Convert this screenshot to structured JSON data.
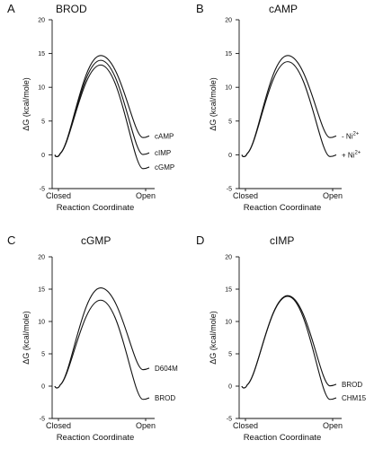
{
  "chart_data": [
    {
      "type": "line",
      "panel_letter": "A",
      "title": "BROD",
      "xlabel": "Reaction Coordinate",
      "ylabel": "ΔG (kcal/mole)",
      "x_ticks": [
        "Closed",
        "Open"
      ],
      "ylim": [
        -5,
        20
      ],
      "y_ticks": [
        "-5",
        "0",
        "5",
        "10",
        "15",
        "20"
      ],
      "grid": false,
      "series": [
        {
          "name": "cAMP",
          "barrier": 14.7,
          "final": 2.8
        },
        {
          "name": "cIMP",
          "barrier": 14.0,
          "final": 0.3
        },
        {
          "name": "cGMP",
          "barrier": 13.3,
          "final": -1.8
        }
      ]
    },
    {
      "type": "line",
      "panel_letter": "B",
      "title": "cAMP",
      "xlabel": "Reaction Coordinate",
      "ylabel": "ΔG (kcal/mole)",
      "x_ticks": [
        "Closed",
        "Open"
      ],
      "ylim": [
        -5,
        20
      ],
      "y_ticks": [
        "-5",
        "0",
        "5",
        "10",
        "15",
        "20"
      ],
      "grid": false,
      "series": [
        {
          "name": "- Ni",
          "superscript": "2+",
          "barrier": 14.7,
          "final": 2.8
        },
        {
          "name": "+ Ni",
          "superscript": "2+",
          "barrier": 13.8,
          "final": 0.0
        }
      ]
    },
    {
      "type": "line",
      "panel_letter": "C",
      "title": "cGMP",
      "xlabel": "Reaction Coordinate",
      "ylabel": "ΔG (kcal/mole)",
      "x_ticks": [
        "Closed",
        "Open"
      ],
      "ylim": [
        -5,
        20
      ],
      "y_ticks": [
        "-5",
        "0",
        "5",
        "10",
        "15",
        "20"
      ],
      "grid": false,
      "series": [
        {
          "name": "D604M",
          "barrier": 15.2,
          "final": 2.8
        },
        {
          "name": "BROD",
          "barrier": 13.3,
          "final": -1.8
        }
      ]
    },
    {
      "type": "line",
      "panel_letter": "D",
      "title": "cIMP",
      "xlabel": "Reaction Coordinate",
      "ylabel": "ΔG (kcal/mole)",
      "x_ticks": [
        "Closed",
        "Open"
      ],
      "ylim": [
        -5,
        20
      ],
      "y_ticks": [
        "-5",
        "0",
        "5",
        "10",
        "15",
        "20"
      ],
      "grid": false,
      "series": [
        {
          "name": "BROD",
          "barrier": 14.0,
          "final": 0.3
        },
        {
          "name": "CHM15",
          "barrier": 13.9,
          "final": -1.8
        }
      ]
    }
  ]
}
